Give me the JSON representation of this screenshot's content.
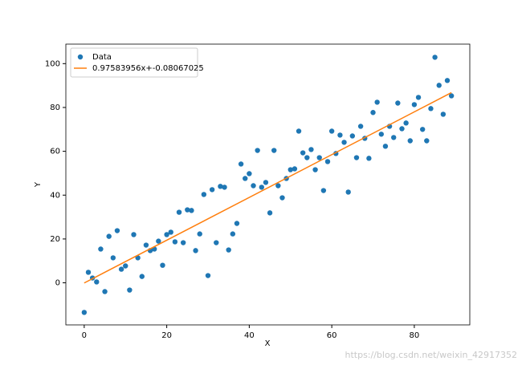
{
  "chart_data": {
    "type": "scatter",
    "x_label": "X",
    "y_label": "Y",
    "xlim": [
      -4.45,
      93.45
    ],
    "ylim": [
      -19.2,
      108.9
    ],
    "xticks": [
      0,
      20,
      40,
      60,
      80
    ],
    "yticks": [
      0,
      20,
      40,
      60,
      80,
      100
    ],
    "legend": "upper left",
    "series": [
      {
        "name": "Data",
        "color": "#1f77b4",
        "mode": "markers",
        "x": [
          0,
          1,
          2,
          3,
          4,
          5,
          6,
          7,
          8,
          9,
          10,
          11,
          12,
          13,
          14,
          15,
          16,
          17,
          18,
          19,
          20,
          21,
          22,
          23,
          24,
          25,
          26,
          27,
          28,
          29,
          30,
          31,
          32,
          33,
          34,
          35,
          36,
          37,
          38,
          39,
          40,
          41,
          42,
          43,
          44,
          45,
          46,
          47,
          48,
          49,
          50,
          51,
          52,
          53,
          54,
          55,
          56,
          57,
          58,
          59,
          60,
          61,
          62,
          63,
          64,
          65,
          66,
          67,
          68,
          69,
          70,
          71,
          72,
          73,
          74,
          75,
          76,
          77,
          78,
          79,
          80,
          81,
          82,
          83,
          84,
          85,
          86,
          87,
          88,
          89
        ],
        "values": [
          -13.5,
          4.8,
          2.2,
          0.4,
          15.4,
          -4,
          21.2,
          11.4,
          23.8,
          6.2,
          7.7,
          -3.3,
          22,
          11.4,
          2.9,
          17.2,
          14.7,
          15.4,
          19,
          8,
          22,
          23.1,
          18.7,
          32.2,
          18.3,
          33.3,
          33,
          14.7,
          22.3,
          40.3,
          3.3,
          42.5,
          18.3,
          44,
          43.6,
          15,
          22.3,
          27.1,
          54.2,
          47.6,
          49.8,
          44.3,
          60.4,
          43.6,
          45.8,
          31.9,
          60.4,
          44.3,
          38.8,
          47.6,
          51.6,
          52,
          69.2,
          59.3,
          57.1,
          60.8,
          51.6,
          57.1,
          42.1,
          55.3,
          69.2,
          59,
          67.4,
          64.1,
          41.4,
          67,
          57.1,
          71.4,
          65.9,
          56.8,
          77.7,
          82.4,
          67.8,
          62.3,
          71.4,
          66.3,
          82,
          70.3,
          72.9,
          64.8,
          81.3,
          84.6,
          70,
          64.8,
          79.5,
          102.9,
          90.1,
          76.9,
          92.3,
          85.3
        ]
      },
      {
        "name": "0.97583956x+-0.08067025",
        "color": "#ff7f0e",
        "mode": "line",
        "x": [
          0,
          89
        ],
        "values": [
          -0.08,
          86.77
        ]
      }
    ],
    "watermark": "https://blog.csdn.net/weixin_42917352"
  }
}
